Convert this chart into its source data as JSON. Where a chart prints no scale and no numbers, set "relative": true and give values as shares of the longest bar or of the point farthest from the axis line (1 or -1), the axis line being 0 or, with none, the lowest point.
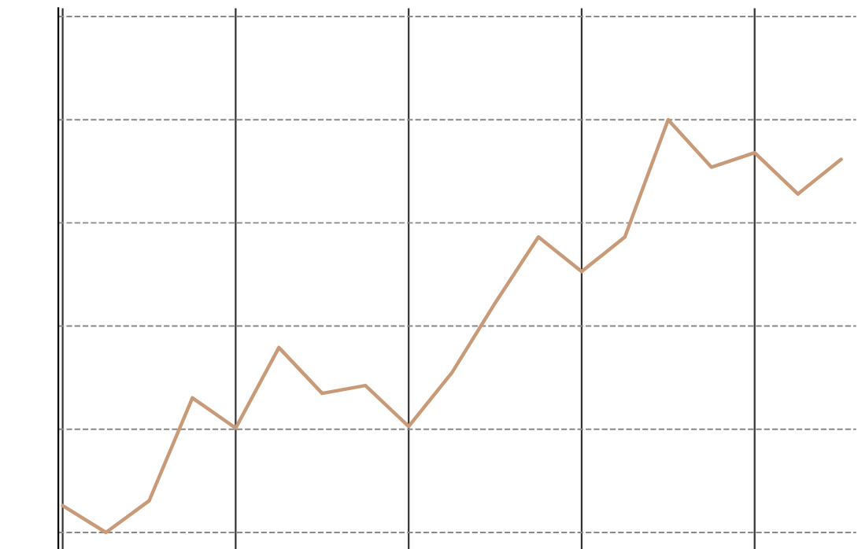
{
  "chart_data": {
    "type": "line",
    "relative": true,
    "grid": true,
    "categories": [
      null,
      null,
      null,
      null,
      null,
      null,
      null,
      null,
      null,
      null,
      null,
      null,
      null,
      null,
      null,
      null,
      null,
      null,
      null
    ],
    "series": [
      {
        "color": "#c89a78",
        "values": [
          0.065,
          0,
          0.077,
          0.326,
          0.253,
          0.448,
          0.337,
          0.356,
          0.257,
          0.387,
          0.556,
          0.716,
          0.632,
          0.716,
          1,
          0.885,
          0.92,
          0.82,
          0.904
        ]
      }
    ]
  }
}
